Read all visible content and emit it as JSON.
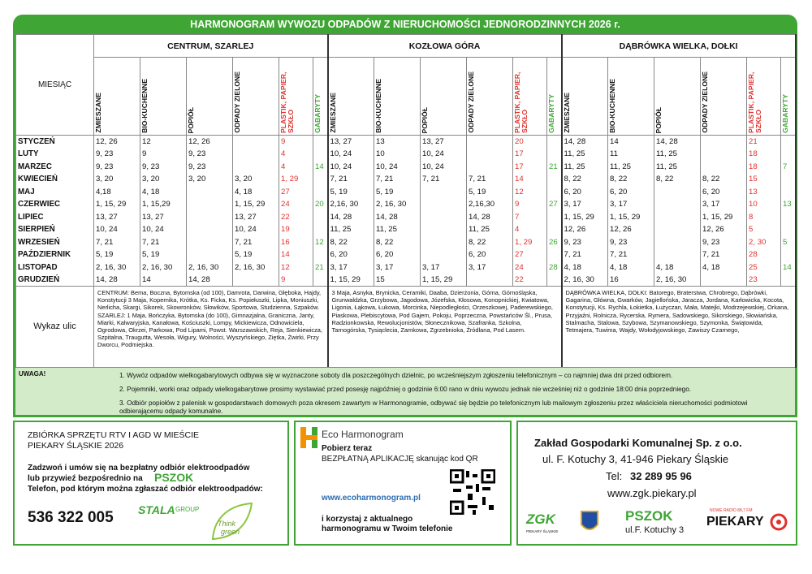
{
  "header": {
    "title": "HARMONOGRAM WYWOZU ODPADÓW Z NIERUCHOMOŚCI JEDNORODZINNYCH 2026 r."
  },
  "table": {
    "month_header": "MIESIĄC",
    "regions": [
      "CENTRUM, SZARLEJ",
      "KOZŁOWA GÓRA",
      "DĄBRÓWKA WIELKA, DOŁKI"
    ],
    "columns": [
      "ZMIESZANE",
      "BIO-KUCHENNE",
      "POPIÓŁ",
      "ODPADY ZIELONE",
      "PLASTIK, PAPIER, SZKŁO",
      "GABARYTY"
    ],
    "rows": [
      [
        "STYCZEŃ",
        "12, 26",
        "12",
        "12, 26",
        null,
        "9",
        null,
        "13, 27",
        "13",
        "13, 27",
        null,
        "20",
        null,
        "14, 28",
        "14",
        "14, 28",
        null,
        "21",
        null
      ],
      [
        "LUTY",
        "9, 23",
        "9",
        "9, 23",
        null,
        "4",
        null,
        "10, 24",
        "10",
        "10, 24",
        null,
        "17",
        null,
        "11, 25",
        "11",
        "11, 25",
        null,
        "18",
        null
      ],
      [
        "MARZEC",
        "9, 23",
        "9, 23",
        "9, 23",
        null,
        "4",
        "14",
        "10, 24",
        "10, 24",
        "10, 24",
        null,
        "17",
        "21",
        "11, 25",
        "11, 25",
        "11, 25",
        null,
        "18",
        "7"
      ],
      [
        "KWIECIEŃ",
        "3, 20",
        "3, 20",
        "3, 20",
        "3, 20",
        "1, 29",
        null,
        "7, 21",
        "7, 21",
        "7, 21",
        "7, 21",
        "14",
        null,
        "8, 22",
        "8, 22",
        "8, 22",
        "8, 22",
        "15",
        null
      ],
      [
        "MAJ",
        "4,18",
        "4, 18",
        null,
        "4, 18",
        "27",
        null,
        "5, 19",
        "5, 19",
        null,
        "5, 19",
        "12",
        null,
        "6, 20",
        "6, 20",
        null,
        "6, 20",
        "13",
        null
      ],
      [
        "CZERWIEC",
        "1, 15, 29",
        "1, 15,29",
        null,
        "1, 15, 29",
        "24",
        "20",
        "2,16, 30",
        "2, 16, 30",
        null,
        "2,16,30",
        "9",
        "27",
        "3, 17",
        "3, 17",
        null,
        "3, 17",
        "10",
        "13"
      ],
      [
        "LIPIEC",
        "13, 27",
        "13, 27",
        null,
        "13, 27",
        "22",
        null,
        "14, 28",
        "14, 28",
        null,
        "14, 28",
        "7",
        null,
        "1, 15, 29",
        "1, 15, 29",
        null,
        "1, 15, 29",
        "8",
        null
      ],
      [
        "SIERPIEŃ",
        "10, 24",
        "10, 24",
        null,
        "10, 24",
        "19",
        null,
        "11, 25",
        "11, 25",
        null,
        "11, 25",
        "4",
        null,
        "12, 26",
        "12, 26",
        null,
        "12, 26",
        "5",
        null
      ],
      [
        "WRZESIEŃ",
        "7, 21",
        "7, 21",
        null,
        "7, 21",
        "16",
        "12",
        "8, 22",
        "8, 22",
        null,
        "8, 22",
        "1, 29",
        "26",
        "9, 23",
        "9, 23",
        null,
        "9, 23",
        "2, 30",
        "5"
      ],
      [
        "PAŹDZIERNIK",
        "5, 19",
        "5, 19",
        null,
        "5, 19",
        "14",
        null,
        "6, 20",
        "6, 20",
        null,
        "6, 20",
        "27",
        null,
        "7, 21",
        "7, 21",
        null,
        "7, 21",
        "28",
        null
      ],
      [
        "LISTOPAD",
        "2, 16, 30",
        "2, 16, 30",
        "2, 16, 30",
        "2, 16, 30",
        "12",
        "21",
        "3, 17",
        "3, 17",
        "3, 17",
        "3, 17",
        "24",
        "28",
        "4, 18",
        "4, 18",
        "4, 18",
        "4, 18",
        "25",
        "14"
      ],
      [
        "GRUDZIEŃ",
        "14, 28",
        "14",
        "14, 28",
        null,
        "9",
        null,
        "1, 15, 29",
        "15",
        "1, 15, 29",
        null,
        "22",
        null,
        "2, 16, 30",
        "16",
        "2, 16, 30",
        null,
        "23",
        null
      ]
    ],
    "streets_header": "Wykaz ulic",
    "streets": [
      [
        "CENTRUM: Bema, Boczna, Bytomska (od 100), Damrota, Darwina, Głęboka, Hajdy, Konstytucji 3 Maja, Kopernika, Krótka, Ks. Ficka, Ks. Popiełuszki, Lipka, Moniuszki, Nerlicha, Skargi, Sikorek, Skowronków, Słowików, Sportowa, Studzienna, Szpaków.",
        "SZARLEJ: 1 Maja, Bończyka, Bytomska (do 100), Gimnazjalna, Graniczna, Janty, Miarki, Kalwaryjska, Kanałowa, Kościuszki, Lompy, Mickiewicza, Odnowiciela, Ogrodowa, Okrzei, Parkowa, Pod Lipami, Powst. Warszawskich, Reja, Sienkiewicza, Szpitalna, Traugutta, Wesoła, Wigury, Wolności, Wyszyńskiego, Ziętka, Żwirki, Przy Dworcu, Podmiejska."
      ],
      [
        "3 Maja, Asnyka, Brynicka, Ceramiki, Daaba, Dzierżonia, Górna, Górnośląska, Grunwaldzka, Grzybowa, Jagodowa, Józefska, Kłosowa, Konopnickiej, Kwiatowa, Ligonia, Łąkowa, Łukowa, Morcinka, Niepodległości, Orzeszkowej, Paderewskiego, Piaskowa, Plebiscytowa, Pod Gajem, Pokoju, Poprzeczna, Powstańców Śl., Prusa, Radzionkowska, Rewolucjonistów, Słonecznikowa, Szafranka, Szkolna, Tarnogórska, Tysiąclecia, Zamkowa, Zgrzebnioka, Źródlana, Pod Lasem."
      ],
      [
        "DĄBRÓWKA WIELKA, DOŁKI: Batorego, Braterstwa, Chrobrego, Dąbrówki, Gagarina, Główna, Gwarków, Jagiellońska, Jaracza, Jordana, Karłowicka, Kocota, Konstytucji, Ks. Rychla, Łokietka, Łużyczan, Mała, Matejki, Modrzejewskiej, Orkana, Przyjaźni, Rolnicza, Rycerska, Rymera, Sadowskiego, Sikorskiego, Słowiańska, Stalmacha, Stalowa, Szybowa, Szymanowskiego, Szymonka, Świątowida, Tetmajera, Tuwima, Wajdy, Wołodyjowskiego, Zawiszy Czarnego,"
      ]
    ]
  },
  "notes": {
    "title": "UWAGA!",
    "items": [
      "1. Wywóz odpadów wielkogabarytowych odbywa się w wyznaczone soboty dla poszczególnych dzielnic, po wcześniejszym zgłoszeniu telefonicznym – co najmniej dwa dni przed odbiorem.",
      "2. Pojemniki, worki oraz odpady wielkogabarytowe prosimy wystawiać przed posesję najpóźniej o godzinie 6:00 rano w dniu wywozu jednak nie wcześniej niż o godzinie 18:00 dnia poprzedniego.",
      "3. Odbiór popiołów z palenisk w gospodarstwach domowych poza okresem zawartym w Harmonogramie, odbywać się będzie po telefonicznym lub mailowym zgłoszeniu przez właściciela nieruchomości podmiotowi odbierającemu odpady komunalne."
    ]
  },
  "footer": {
    "rtv": {
      "title": "ZBIÓRKA SPRZĘTU RTV I AGD W MIEŚCIE",
      "city": "PIEKARY ŚLĄSKIE  2026",
      "line1": "Zadzwoń i umów się na bezpłatny odbiór elektroodpadów",
      "line2": "lub przywieź bezpośrednio na",
      "pszok": "PSZOK",
      "line3": "Telefon, pod którym można zgłaszać odbiór elektroodpadów:",
      "phone": "536 322 005",
      "stala": "STALA",
      "group": "GROUP",
      "think": "Think",
      "green": "green"
    },
    "app": {
      "brand": "Eco Harmonogram",
      "line1": "Pobierz teraz",
      "line2": "BEZPŁATNĄ APLIKACJĘ skanując kod QR",
      "url": "www.ecoharmonogram.pl",
      "line3": "i korzystaj z aktualnego",
      "line4": "harmonogramu w Twoim telefonie"
    },
    "zgk": {
      "name": "Zakład Gospodarki Komunalnej Sp. z o.o.",
      "address": "ul. F. Kotuchy 3, 41-946 Piekary Śląskie",
      "tel_label": "Tel:",
      "tel": "32 289 95 96",
      "url": "www.zgk.piekary.pl",
      "zgk_logo": "ZGK",
      "zgk_sub": "PIEKARY ŚLĄSKIE",
      "pszok": "PSZOK",
      "pszok_addr": "ul.F. Kotuchy 3",
      "radio_top": "NOWE RADIO 88,7 FM",
      "radio": "PIEKARY"
    }
  }
}
